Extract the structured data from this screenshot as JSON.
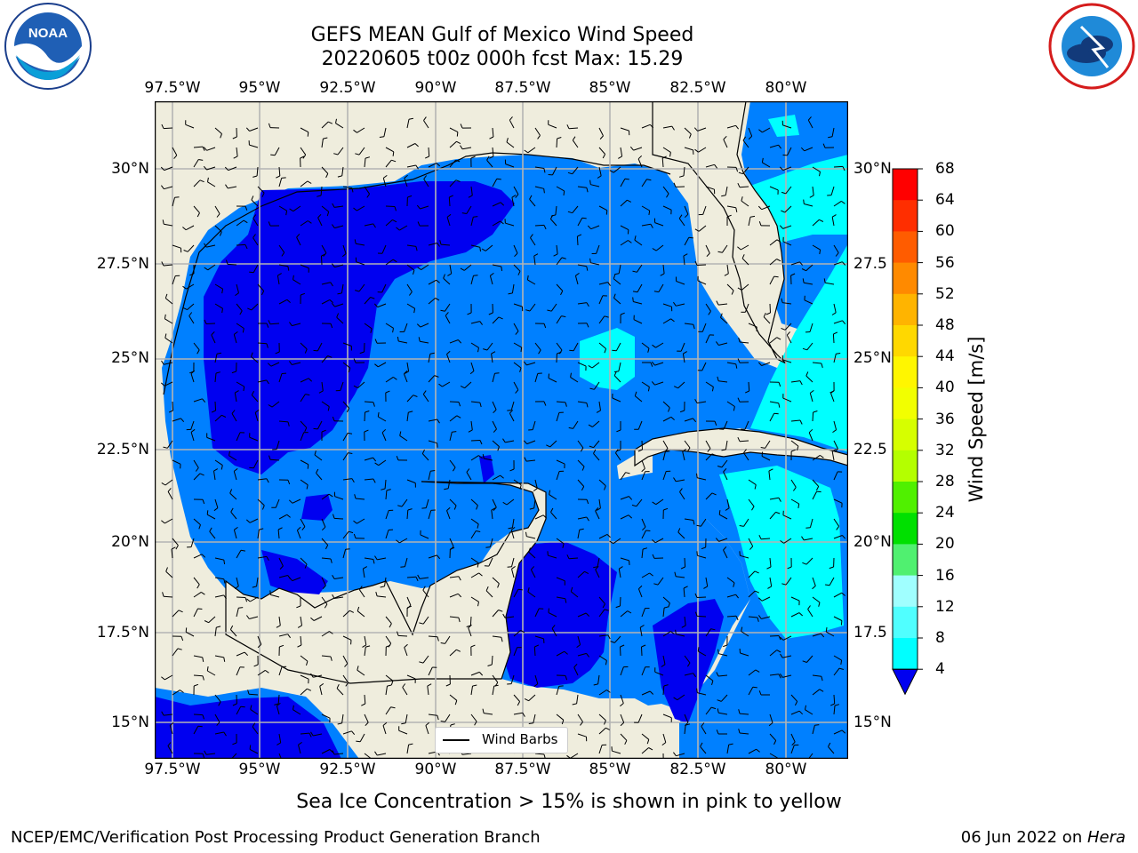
{
  "title_line1": "GEFS MEAN Gulf of Mexico Wind Speed",
  "title_line2": "20220605 t00z 000h fcst   Max: 15.29",
  "logos": {
    "left": "NOAA",
    "right": "National Weather Service"
  },
  "map": {
    "lon_ticks": [
      "97.5°W",
      "95°W",
      "92.5°W",
      "90°W",
      "87.5°W",
      "85°W",
      "82.5°W",
      "80°W"
    ],
    "lat_ticks_left": [
      "30°N",
      "27.5°N",
      "25°N",
      "22.5°N",
      "20°N",
      "17.5°N",
      "15°N"
    ],
    "lat_ticks_right": [
      "30°N",
      "27.5",
      "25°N",
      "22.5",
      "20°N",
      "17.5",
      "15°N"
    ],
    "legend_label": "Wind Barbs",
    "colors": {
      "land": "#efeddd",
      "ocean_4_8": "#0080ff",
      "ocean_lt4": "#0000f0",
      "ocean_8_12": "#00ffff",
      "grid": "#b4b4b4"
    }
  },
  "colorbar": {
    "title": "Wind Speed [m/s]",
    "labels": [
      "68",
      "64",
      "60",
      "56",
      "52",
      "48",
      "44",
      "40",
      "36",
      "32",
      "28",
      "24",
      "20",
      "16",
      "12",
      "8",
      "4"
    ],
    "colors": [
      "#ff0000",
      "#ff2e00",
      "#ff5c00",
      "#ff8a00",
      "#ffb400",
      "#ffd800",
      "#fff600",
      "#f2ff00",
      "#d6ff00",
      "#b4ff00",
      "#50f000",
      "#00e000",
      "#50f070",
      "#a0ffff",
      "#50ffff",
      "#00ffff",
      "#0080ff"
    ],
    "under_color": "#0000f0"
  },
  "note": "Sea Ice Concentration > 15% is shown in pink to yellow",
  "footer_left": "NCEP/EMC/Verification Post Processing Product Generation Branch",
  "footer_right_date": "06 Jun 2022 on ",
  "footer_right_host": "Hera"
}
